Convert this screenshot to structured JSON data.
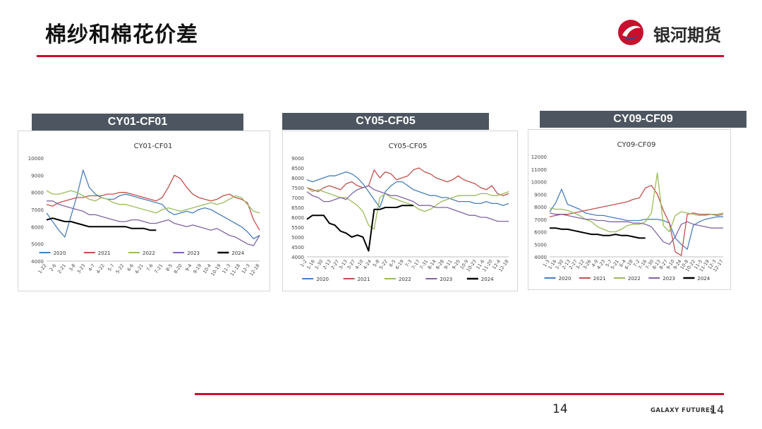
{
  "page": {
    "title": "棉纱和棉花价差",
    "brand_name": "银河期货",
    "page_number": "14",
    "footer_brand": "GALAXY FUTURES",
    "footer_page": "14",
    "accent_color": "#c8102e",
    "header_color": "#4d5660"
  },
  "chart_data": [
    {
      "type": "line",
      "header": "CY01-CF01",
      "title": "CY01-CF01",
      "ylim": [
        4000,
        10000
      ],
      "yticks": [
        4000,
        5000,
        6000,
        7000,
        8000,
        9000,
        10000
      ],
      "xticks": [
        "1-22",
        "2-6",
        "2-21",
        "3-8",
        "3-23",
        "4-7",
        "4-22",
        "5-7",
        "5-22",
        "6-6",
        "6-21",
        "7-6",
        "7-21",
        "8-5",
        "8-20",
        "9-4",
        "9-19",
        "10-4",
        "10-19",
        "11-3",
        "11-18",
        "12-3",
        "12-18"
      ],
      "series": [
        {
          "name": "2020",
          "color": "#4a7ebb",
          "values": [
            6800,
            6300,
            5800,
            5400,
            6600,
            7800,
            9300,
            8300,
            7900,
            7700,
            7600,
            7600,
            7800,
            7900,
            7800,
            7700,
            7600,
            7500,
            7400,
            7300,
            6900,
            6700,
            6800,
            6900,
            6800,
            7000,
            7100,
            7000,
            6800,
            6600,
            6400,
            6200,
            6000,
            5700,
            5300,
            5500
          ]
        },
        {
          "name": "2021",
          "color": "#c0504d",
          "values": [
            7300,
            7200,
            7400,
            7500,
            7600,
            7700,
            7700,
            7800,
            7800,
            7800,
            7900,
            7900,
            8000,
            8000,
            7900,
            7800,
            7700,
            7600,
            7500,
            7700,
            8300,
            9000,
            8800,
            8300,
            7900,
            7700,
            7600,
            7500,
            7600,
            7800,
            7900,
            7700,
            7600,
            7400,
            6400,
            5800
          ]
        },
        {
          "name": "2022",
          "color": "#9bbb59",
          "values": [
            8100,
            7900,
            7900,
            8000,
            8100,
            8000,
            7800,
            7600,
            7500,
            7700,
            7600,
            7400,
            7300,
            7300,
            7200,
            7100,
            7000,
            6900,
            6800,
            7000,
            7100,
            7000,
            6900,
            7000,
            7100,
            7200,
            7300,
            7400,
            7300,
            7400,
            7600,
            7800,
            7700,
            7300,
            6900,
            6800
          ]
        },
        {
          "name": "2023",
          "color": "#8064a2",
          "values": [
            7500,
            7500,
            7300,
            7200,
            7100,
            7000,
            6900,
            6700,
            6700,
            6600,
            6500,
            6400,
            6300,
            6300,
            6400,
            6400,
            6300,
            6200,
            6200,
            6300,
            6400,
            6200,
            6100,
            6000,
            6100,
            6000,
            5900,
            5800,
            5900,
            5700,
            5500,
            5400,
            5200,
            5000,
            4900,
            5500
          ]
        },
        {
          "name": "2024",
          "color": "#000000",
          "values": [
            6400,
            6500,
            6400,
            6300,
            6300,
            6200,
            6100,
            6000,
            6000,
            6000,
            6000,
            6000,
            6000,
            6000,
            5900,
            5900,
            5900,
            5800,
            5800
          ]
        }
      ]
    },
    {
      "type": "line",
      "header": "CY05-CF05",
      "title": "CY05-CF05",
      "ylim": [
        4000,
        9000
      ],
      "yticks": [
        4000,
        4500,
        5000,
        5500,
        6000,
        6500,
        7000,
        7500,
        8000,
        8500,
        9000
      ],
      "xticks": [
        "1-2",
        "1-16",
        "1-30",
        "2-13",
        "2-27",
        "3-13",
        "3-27",
        "4-10",
        "4-24",
        "5-8",
        "5-22",
        "6-5",
        "6-19",
        "7-3",
        "7-17",
        "7-31",
        "8-14",
        "8-28",
        "9-11",
        "9-25",
        "10-9",
        "10-23",
        "11-6",
        "11-20",
        "12-4",
        "12-18"
      ],
      "series": [
        {
          "name": "2020",
          "color": "#4a7ebb",
          "values": [
            7900,
            7800,
            7900,
            8000,
            8100,
            8100,
            8200,
            8300,
            8200,
            8000,
            7700,
            7300,
            6900,
            6500,
            7300,
            7600,
            7800,
            7800,
            7600,
            7400,
            7300,
            7200,
            7100,
            7100,
            7000,
            7000,
            6900,
            6800,
            6800,
            6800,
            6700,
            6700,
            6800,
            6700,
            6700,
            6600,
            6700
          ]
        },
        {
          "name": "2021",
          "color": "#c0504d",
          "values": [
            7500,
            7400,
            7300,
            7500,
            7600,
            7500,
            7400,
            7700,
            7800,
            7600,
            7500,
            7600,
            8400,
            8000,
            8300,
            8200,
            7900,
            8000,
            8100,
            8400,
            8500,
            8300,
            8200,
            8000,
            7900,
            7800,
            7900,
            8100,
            7900,
            7800,
            7700,
            7500,
            7400,
            7600,
            7200,
            7100,
            7200
          ]
        },
        {
          "name": "2022",
          "color": "#9bbb59",
          "values": [
            7500,
            7300,
            7400,
            7300,
            7200,
            7100,
            7000,
            7000,
            6800,
            6600,
            6300,
            5600,
            5400,
            7000,
            7200,
            7000,
            6900,
            6800,
            6700,
            6600,
            6400,
            6300,
            6400,
            6600,
            6800,
            6900,
            7000,
            7100,
            7100,
            7100,
            7100,
            7200,
            7200,
            7100,
            7100,
            7200,
            7300
          ]
        },
        {
          "name": "2023",
          "color": "#8064a2",
          "values": [
            7300,
            7100,
            7000,
            6800,
            6800,
            6900,
            7000,
            6900,
            7200,
            7400,
            7500,
            7600,
            7400,
            7300,
            7200,
            7100,
            7100,
            7000,
            6900,
            6800,
            6600,
            6600,
            6600,
            6500,
            6500,
            6500,
            6400,
            6300,
            6200,
            6100,
            6100,
            6000,
            6000,
            5900,
            5800,
            5800,
            5800
          ]
        },
        {
          "name": "2024",
          "color": "#000000",
          "values": [
            5900,
            6100,
            6100,
            6100,
            5700,
            5600,
            5300,
            5200,
            5000,
            5100,
            5000,
            4300,
            6400,
            6400,
            6500,
            6500,
            6500,
            6600,
            6600,
            6600
          ]
        }
      ]
    },
    {
      "type": "line",
      "header": "CY09-CF09",
      "title": "CY09-CF09",
      "ylim": [
        4000,
        12000
      ],
      "yticks": [
        4000,
        5000,
        6000,
        7000,
        8000,
        9000,
        10000,
        11000,
        12000
      ],
      "xticks": [
        "1-3",
        "1-16",
        "1-30",
        "2-13",
        "2-27",
        "3-12",
        "3-26",
        "4-9",
        "4-23",
        "5-7",
        "5-21",
        "6-4",
        "6-18",
        "7-2",
        "7-16",
        "7-30",
        "8-13",
        "8-27",
        "9-10",
        "9-24",
        "10-8",
        "10-22",
        "11-5",
        "11-19",
        "12-3",
        "12-17"
      ],
      "series": [
        {
          "name": "2020",
          "color": "#4a7ebb",
          "values": [
            7600,
            8300,
            9400,
            8200,
            8000,
            7800,
            7500,
            7400,
            7300,
            7300,
            7200,
            7100,
            7000,
            6900,
            6900,
            6900,
            7000,
            7000,
            7000,
            6900,
            6700,
            5500,
            5000,
            4600,
            6500,
            6800,
            7000,
            7100,
            7200,
            7200
          ]
        },
        {
          "name": "2021",
          "color": "#c0504d",
          "values": [
            7200,
            7300,
            7400,
            7400,
            7500,
            7600,
            7700,
            7800,
            7900,
            8000,
            8100,
            8200,
            8300,
            8400,
            8600,
            8700,
            9500,
            9700,
            9000,
            7700,
            6700,
            4400,
            4100,
            7400,
            7500,
            7400,
            7400,
            7400,
            7300,
            7400
          ]
        },
        {
          "name": "2022",
          "color": "#9bbb59",
          "values": [
            7900,
            7800,
            7800,
            7700,
            7500,
            7300,
            7000,
            6800,
            6400,
            6200,
            6000,
            6000,
            6200,
            6500,
            6600,
            6600,
            6800,
            7500,
            10700,
            6500,
            6000,
            7300,
            7600,
            7500,
            7400,
            7300,
            7300,
            7400,
            7400,
            7500
          ]
        },
        {
          "name": "2023",
          "color": "#8064a2",
          "values": [
            7500,
            7400,
            7400,
            7300,
            7200,
            7100,
            7000,
            7000,
            6900,
            6900,
            6800,
            6800,
            6800,
            6800,
            6700,
            6700,
            6600,
            6400,
            5800,
            5200,
            5000,
            5600,
            6600,
            6800,
            6600,
            6500,
            6400,
            6300,
            6300,
            6300
          ]
        },
        {
          "name": "2024",
          "color": "#000000",
          "values": [
            6300,
            6300,
            6200,
            6200,
            6100,
            6000,
            5900,
            5800,
            5800,
            5700,
            5700,
            5800,
            5700,
            5700,
            5600,
            5500,
            5500
          ]
        }
      ]
    }
  ]
}
